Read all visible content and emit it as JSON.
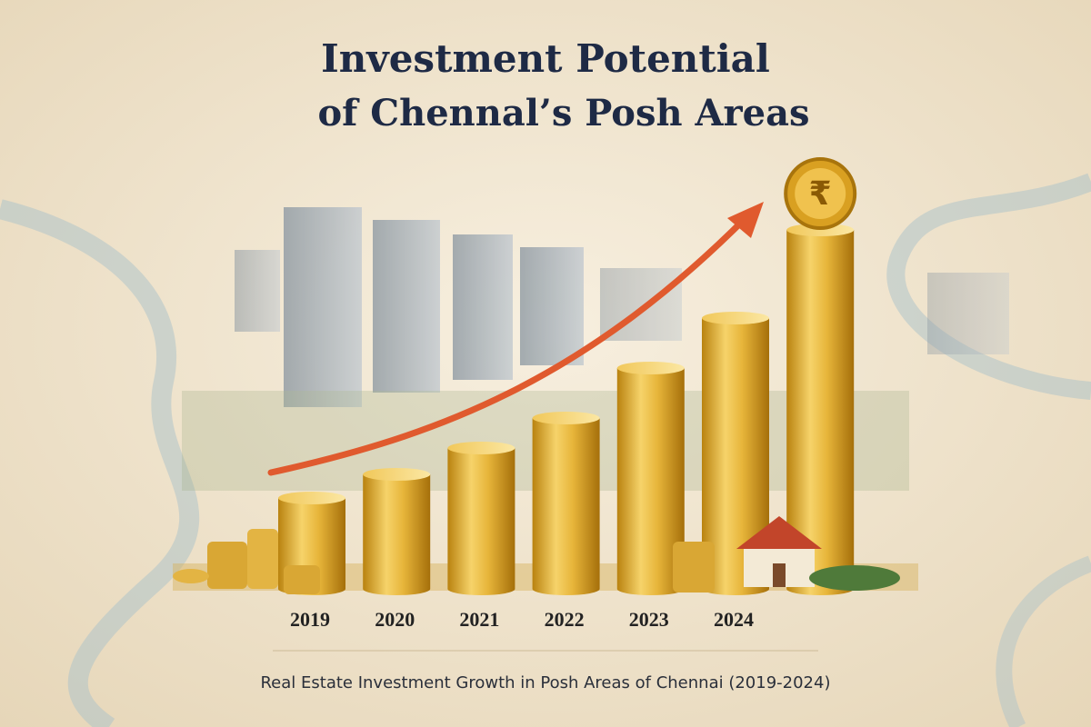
{
  "chart_data": {
    "type": "bar",
    "title": [
      "Investment Potential",
      "of Chennal’s Posh Areas"
    ],
    "caption": "Real Estate Investment Growth in Posh Areas of Chennai (2019-2024)",
    "coin_label": "₹",
    "categories": [
      "2019",
      "2020",
      "2021",
      "2022",
      "2023",
      "2024",
      null
    ],
    "values": [
      100,
      126,
      155,
      188,
      243,
      298,
      395
    ],
    "color": "#e2b33a",
    "ylim": [
      0,
      400
    ]
  }
}
